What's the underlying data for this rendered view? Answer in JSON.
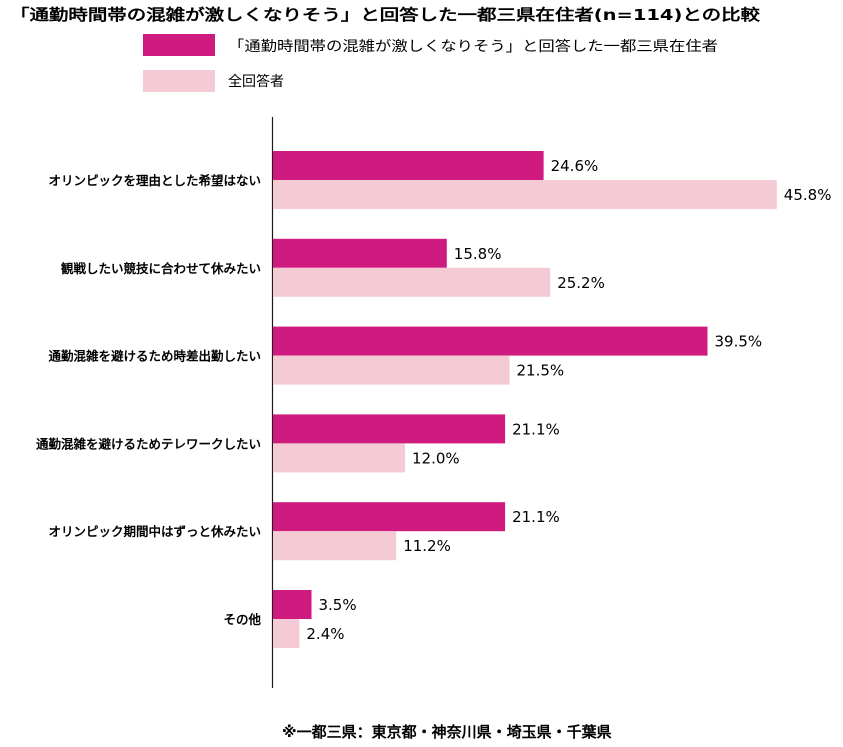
{
  "chart_data": {
    "type": "bar",
    "orientation": "horizontal",
    "title": "「通勤時間帯の混雑が激しくなりそう」と回答した一都三県在住者(n=114)との比較",
    "categories": [
      "オリンピックを理由とした希望はない",
      "観戦したい競技に合わせて休みたい",
      "通勤混雑を避けるため時差出勤したい",
      "通勤混雑を避けるためテレワークしたい",
      "オリンピック期間中はずっと休みたい",
      "その他"
    ],
    "series": [
      {
        "name": "「通勤時間帯の混雑が激しくなりそう」と回答した一都三県在住者",
        "color": "#cf1a80",
        "values": [
          24.6,
          15.8,
          39.5,
          21.1,
          21.1,
          3.5
        ],
        "labels": [
          "24.6%",
          "15.8%",
          "39.5%",
          "21.1%",
          "21.1%",
          "3.5%"
        ]
      },
      {
        "name": "全回答者",
        "color": "#f4cbd4",
        "values": [
          45.8,
          25.2,
          21.5,
          12.0,
          11.2,
          2.4
        ],
        "labels": [
          "45.8%",
          "25.2%",
          "21.5%",
          "12.0%",
          "11.2%",
          "2.4%"
        ]
      }
    ],
    "xlim": [
      0,
      50
    ],
    "xlabel": "",
    "ylabel": "",
    "grid": false,
    "legend_position": "top"
  },
  "footnote": "※一都三県：東京都・神奈川県・埼玉県・千葉県"
}
